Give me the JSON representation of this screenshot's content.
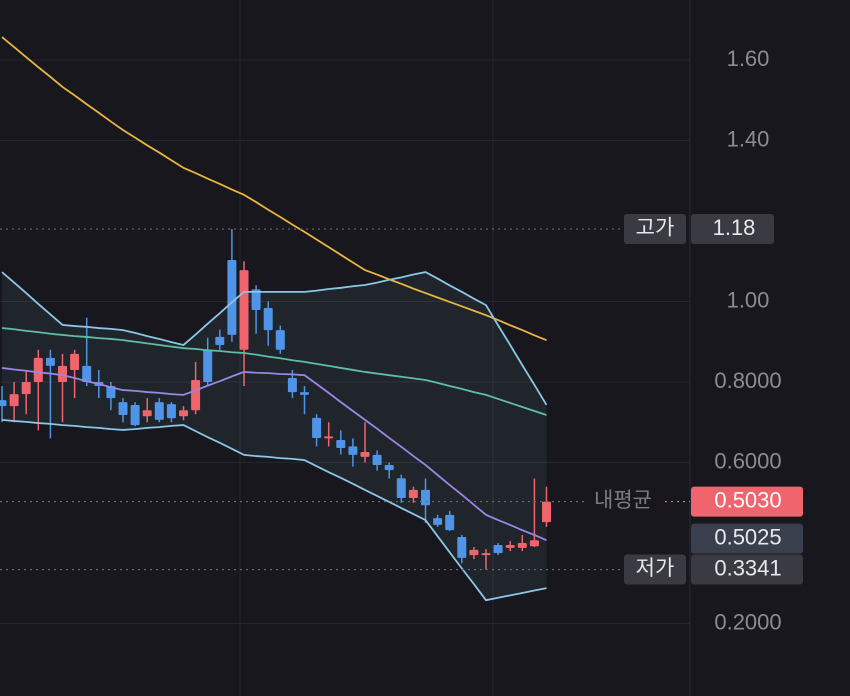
{
  "chart_data": {
    "type": "candlestick",
    "ylim": [
      0.02,
      1.749
    ],
    "yticks": [
      {
        "value": 1.6,
        "label": "1.60"
      },
      {
        "value": 1.4,
        "label": "1.40"
      },
      {
        "value": 1.0,
        "label": "1.00"
      },
      {
        "value": 0.8,
        "label": "0.8000"
      },
      {
        "value": 0.6,
        "label": "0.6000"
      },
      {
        "value": 0.2,
        "label": "0.2000"
      }
    ],
    "grid": true,
    "up_color": "#f0646d",
    "down_color": "#4f94e6",
    "open": [
      0.755,
      0.74,
      0.77,
      0.8,
      0.86,
      0.8,
      0.83,
      0.84,
      0.8,
      0.79,
      0.75,
      0.743,
      0.715,
      0.75,
      0.745,
      0.715,
      0.73,
      0.88,
      0.912,
      1.103,
      0.88,
      1.03,
      0.984,
      0.929,
      0.81,
      0.775,
      0.711,
      0.661,
      0.656,
      0.64,
      0.614,
      0.619,
      0.594,
      0.561,
      0.512,
      0.532,
      0.462,
      0.47,
      0.415,
      0.37,
      0.37,
      0.395,
      0.388,
      0.388,
      0.392,
      0.452
    ],
    "high": [
      0.79,
      0.8,
      0.83,
      0.88,
      0.88,
      0.87,
      0.88,
      0.96,
      0.83,
      0.8,
      0.76,
      0.75,
      0.76,
      0.76,
      0.75,
      0.74,
      0.85,
      0.91,
      0.93,
      1.18,
      1.1,
      1.04,
      1.0,
      0.94,
      0.83,
      0.79,
      0.72,
      0.7,
      0.68,
      0.66,
      0.7,
      0.63,
      0.6,
      0.57,
      0.54,
      0.56,
      0.47,
      0.48,
      0.42,
      0.39,
      0.385,
      0.4,
      0.405,
      0.42,
      0.56,
      0.54
    ],
    "low": [
      0.7,
      0.7,
      0.72,
      0.68,
      0.66,
      0.7,
      0.76,
      0.79,
      0.76,
      0.73,
      0.7,
      0.69,
      0.7,
      0.7,
      0.7,
      0.705,
      0.72,
      0.79,
      0.88,
      0.9,
      0.79,
      0.92,
      0.89,
      0.87,
      0.76,
      0.72,
      0.64,
      0.64,
      0.62,
      0.59,
      0.6,
      0.58,
      0.56,
      0.5,
      0.5,
      0.45,
      0.44,
      0.43,
      0.35,
      0.36,
      0.334,
      0.37,
      0.38,
      0.38,
      0.39,
      0.44
    ],
    "close": [
      0.74,
      0.77,
      0.8,
      0.86,
      0.84,
      0.84,
      0.87,
      0.8,
      0.79,
      0.76,
      0.718,
      0.693,
      0.73,
      0.706,
      0.71,
      0.73,
      0.805,
      0.8,
      0.892,
      0.917,
      1.078,
      0.979,
      0.929,
      0.88,
      0.775,
      0.768,
      0.661,
      0.665,
      0.636,
      0.619,
      0.626,
      0.594,
      0.581,
      0.512,
      0.532,
      0.494,
      0.445,
      0.432,
      0.363,
      0.383,
      0.375,
      0.375,
      0.395,
      0.4,
      0.407,
      0.503
    ],
    "series": [
      {
        "color": "#e9b53f",
        "values": [
          1.657,
          1.632,
          1.607,
          1.582,
          1.558,
          1.533,
          1.512,
          1.49,
          1.469,
          1.447,
          1.426,
          1.407,
          1.388,
          1.37,
          1.351,
          1.332,
          1.319,
          1.305,
          1.292,
          1.278,
          1.265,
          1.247,
          1.228,
          1.21,
          1.191,
          1.173,
          1.154,
          1.135,
          1.116,
          1.097,
          1.078,
          1.067,
          1.055,
          1.044,
          1.032,
          1.021,
          1.01,
          0.999,
          0.988,
          0.977,
          0.966,
          0.954,
          0.941,
          0.929,
          0.916,
          0.904
        ]
      },
      {
        "color": "#5dbda6",
        "values": [
          0.934,
          0.931,
          0.927,
          0.924,
          0.92,
          0.917,
          0.914,
          0.912,
          0.909,
          0.907,
          0.904,
          0.9,
          0.896,
          0.892,
          0.888,
          0.884,
          0.882,
          0.879,
          0.877,
          0.874,
          0.872,
          0.868,
          0.863,
          0.859,
          0.854,
          0.85,
          0.845,
          0.84,
          0.835,
          0.83,
          0.825,
          0.821,
          0.817,
          0.813,
          0.809,
          0.805,
          0.798,
          0.79,
          0.783,
          0.775,
          0.768,
          0.758,
          0.748,
          0.738,
          0.728,
          0.718
        ]
      },
      {
        "color": "#9a86e6",
        "values": [
          0.835,
          0.831,
          0.828,
          0.824,
          0.821,
          0.817,
          0.81,
          0.802,
          0.795,
          0.787,
          0.78,
          0.778,
          0.775,
          0.773,
          0.77,
          0.768,
          0.779,
          0.791,
          0.802,
          0.814,
          0.825,
          0.823,
          0.822,
          0.82,
          0.819,
          0.817,
          0.795,
          0.773,
          0.75,
          0.728,
          0.706,
          0.684,
          0.661,
          0.639,
          0.616,
          0.594,
          0.569,
          0.544,
          0.52,
          0.495,
          0.47,
          0.457,
          0.445,
          0.432,
          0.42,
          0.407
        ]
      },
      {
        "color": "#8cc6e6",
        "values": [
          1.073,
          1.047,
          1.021,
          0.994,
          0.968,
          0.942,
          0.939,
          0.937,
          0.934,
          0.932,
          0.929,
          0.922,
          0.914,
          0.907,
          0.899,
          0.892,
          0.918,
          0.945,
          0.971,
          0.998,
          1.024,
          1.024,
          1.024,
          1.024,
          1.024,
          1.024,
          1.027,
          1.031,
          1.034,
          1.038,
          1.041,
          1.047,
          1.054,
          1.06,
          1.067,
          1.073,
          1.057,
          1.04,
          1.024,
          1.007,
          0.991,
          0.941,
          0.892,
          0.842,
          0.793,
          0.743
        ]
      },
      {
        "color": "#8cc6e6",
        "values": [
          0.706,
          0.703,
          0.701,
          0.698,
          0.696,
          0.693,
          0.691,
          0.688,
          0.686,
          0.683,
          0.681,
          0.683,
          0.686,
          0.688,
          0.691,
          0.693,
          0.678,
          0.663,
          0.649,
          0.634,
          0.619,
          0.616,
          0.614,
          0.611,
          0.609,
          0.606,
          0.591,
          0.576,
          0.562,
          0.547,
          0.532,
          0.517,
          0.502,
          0.487,
          0.472,
          0.457,
          0.417,
          0.377,
          0.337,
          0.298,
          0.258,
          0.264,
          0.27,
          0.276,
          0.282,
          0.288
        ]
      }
    ],
    "price_lines": [
      {
        "name": "고가",
        "value": 1.18
      },
      {
        "name": "내평균",
        "value": 0.503,
        "value_label": "0.5030"
      },
      {
        "name": "저가",
        "value": 0.3341
      }
    ],
    "last_price": 0.5025
  }
}
